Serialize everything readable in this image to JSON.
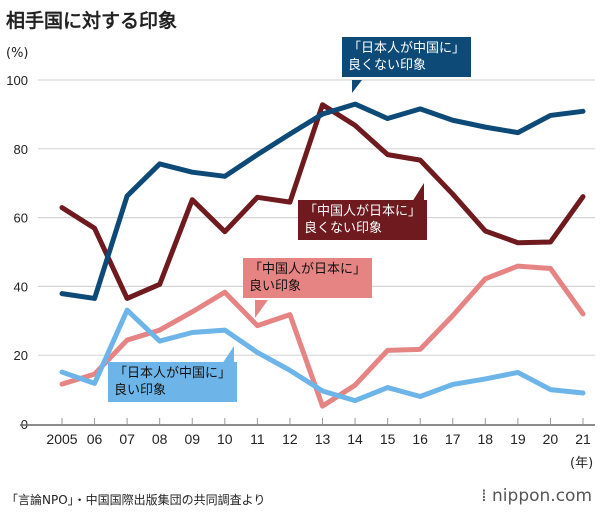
{
  "title": "相手国に対する印象",
  "unit_label": "(%)",
  "year_unit_label": "(年)",
  "source": "「言論NPO」・中国国際出版集団の共同調査より",
  "logo": "nippon.com",
  "chart_data": {
    "type": "line",
    "title": "相手国に対する印象",
    "ylabel": "(%)",
    "xlabel": "(年)",
    "ylim": [
      0,
      100
    ],
    "yticks": [
      0,
      20,
      40,
      60,
      80,
      100
    ],
    "grid": true,
    "categories": [
      "2005",
      "06",
      "07",
      "08",
      "09",
      "10",
      "11",
      "12",
      "13",
      "14",
      "15",
      "16",
      "17",
      "18",
      "19",
      "20",
      "21"
    ],
    "series": [
      {
        "name": "「日本人が中国に」良くない印象",
        "line1": "「日本人が中国に」",
        "line2": "良くない印象",
        "color": "#0e4a78",
        "values": [
          37.9,
          36.5,
          66.3,
          75.6,
          73.2,
          72.0,
          78.3,
          84.3,
          90.1,
          93.0,
          88.8,
          91.6,
          88.3,
          86.3,
          84.7,
          89.7,
          90.9
        ]
      },
      {
        "name": "「中国人が日本に」良くない印象",
        "line1": "「中国人が日本に」",
        "line2": "良くない印象",
        "color": "#6e1a1e",
        "values": [
          62.9,
          56.9,
          36.5,
          40.6,
          65.2,
          55.9,
          65.9,
          64.5,
          92.8,
          86.8,
          78.3,
          76.7,
          66.8,
          56.1,
          52.7,
          52.9,
          66.1
        ]
      },
      {
        "name": "「中国人が日本に」良い印象",
        "line1": "「中国人が日本に」",
        "line2": "良い印象",
        "color": "#e68484",
        "values": [
          11.6,
          14.5,
          24.4,
          27.3,
          32.6,
          38.3,
          28.6,
          31.8,
          5.2,
          11.3,
          21.4,
          21.7,
          31.5,
          42.2,
          45.9,
          45.2,
          32.0
        ]
      },
      {
        "name": "「日本人が中国に」良い印象",
        "line1": "「日本人が中国に」",
        "line2": "良い印象",
        "color": "#6db5e8",
        "values": [
          15.1,
          11.8,
          33.1,
          24.1,
          26.6,
          27.3,
          20.8,
          15.6,
          9.6,
          6.8,
          10.6,
          8.0,
          11.5,
          13.1,
          15.0,
          10.0,
          9.0
        ]
      }
    ]
  }
}
